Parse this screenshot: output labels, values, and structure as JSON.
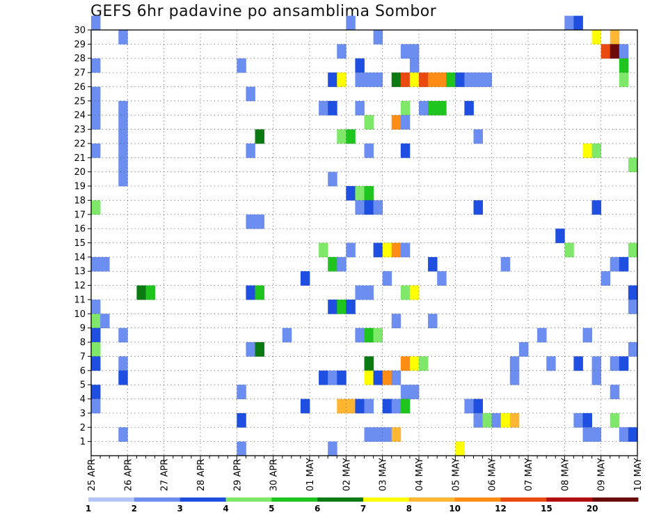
{
  "title": "GEFS 6hr padavine po ansamblima Sombor",
  "chart_data": {
    "type": "heatmap",
    "title": "GEFS 6hr padavine po ansamblima Sombor",
    "x_tick_labels": [
      "25 APR",
      "26 APR",
      "27 APR",
      "28 APR",
      "29 APR",
      "30 APR",
      "01 MAY",
      "02 MAY",
      "03 MAY",
      "04 MAY",
      "05 MAY",
      "06 MAY",
      "07 MAY",
      "08 MAY",
      "09 MAY",
      "10 MAY"
    ],
    "y_tick_labels": [
      "1",
      "2",
      "3",
      "4",
      "5",
      "6",
      "7",
      "8",
      "9",
      "10",
      "11",
      "12",
      "13",
      "14",
      "15",
      "16",
      "17",
      "18",
      "19",
      "20",
      "21",
      "22",
      "23",
      "24",
      "25",
      "26",
      "27",
      "28",
      "29",
      "30"
    ],
    "x_range": [
      0,
      60
    ],
    "y_range": [
      0,
      30
    ],
    "grid": true,
    "colorbar": {
      "tick_labels": [
        "1",
        "2",
        "3",
        "4",
        "5",
        "6",
        "7",
        "8",
        "10",
        "12",
        "15",
        "20"
      ],
      "colors": [
        "#b3c6f7",
        "#6b8ef0",
        "#1f4fe0",
        "#7fe86a",
        "#1fc41f",
        "#0b7a12",
        "#ffff00",
        "#ffb733",
        "#ff8c14",
        "#e84a0f",
        "#b40f0f",
        "#6b0a0a"
      ]
    },
    "cells": [
      [
        0,
        30,
        1
      ],
      [
        28,
        30,
        1
      ],
      [
        52,
        30,
        1
      ],
      [
        53,
        30,
        2
      ],
      [
        3,
        29,
        1
      ],
      [
        31,
        29,
        1
      ],
      [
        55,
        29,
        6
      ],
      [
        57,
        29,
        7
      ],
      [
        27,
        28,
        1
      ],
      [
        34,
        28,
        1
      ],
      [
        35,
        28,
        1
      ],
      [
        56,
        28,
        9
      ],
      [
        57,
        28,
        11
      ],
      [
        58,
        28,
        1
      ],
      [
        0,
        27,
        1
      ],
      [
        16,
        27,
        1
      ],
      [
        29,
        27,
        2
      ],
      [
        35,
        27,
        1
      ],
      [
        58,
        27,
        4
      ],
      [
        26,
        26,
        2
      ],
      [
        27,
        26,
        6
      ],
      [
        29,
        26,
        1
      ],
      [
        30,
        26,
        1
      ],
      [
        31,
        26,
        1
      ],
      [
        33,
        26,
        5
      ],
      [
        34,
        26,
        9
      ],
      [
        35,
        26,
        6
      ],
      [
        36,
        26,
        9
      ],
      [
        37,
        26,
        8
      ],
      [
        38,
        26,
        8
      ],
      [
        39,
        26,
        4
      ],
      [
        40,
        26,
        2
      ],
      [
        41,
        26,
        1
      ],
      [
        42,
        26,
        1
      ],
      [
        43,
        26,
        1
      ],
      [
        58,
        26,
        3
      ],
      [
        0,
        25,
        1
      ],
      [
        17,
        25,
        1
      ],
      [
        0,
        24,
        1
      ],
      [
        3,
        24,
        1
      ],
      [
        25,
        24,
        1
      ],
      [
        26,
        24,
        2
      ],
      [
        29,
        24,
        1
      ],
      [
        34,
        24,
        3
      ],
      [
        36,
        24,
        1
      ],
      [
        37,
        24,
        4
      ],
      [
        38,
        24,
        4
      ],
      [
        41,
        24,
        2
      ],
      [
        0,
        23,
        1
      ],
      [
        3,
        23,
        1
      ],
      [
        30,
        23,
        3
      ],
      [
        33,
        23,
        8
      ],
      [
        34,
        23,
        1
      ],
      [
        3,
        22,
        1
      ],
      [
        18,
        22,
        5
      ],
      [
        27,
        22,
        3
      ],
      [
        28,
        22,
        4
      ],
      [
        42,
        22,
        1
      ],
      [
        0,
        21,
        1
      ],
      [
        3,
        21,
        1
      ],
      [
        17,
        21,
        1
      ],
      [
        30,
        21,
        1
      ],
      [
        34,
        21,
        2
      ],
      [
        54,
        21,
        6
      ],
      [
        55,
        21,
        3
      ],
      [
        3,
        20,
        1
      ],
      [
        59,
        20,
        3
      ],
      [
        3,
        19,
        1
      ],
      [
        26,
        19,
        1
      ],
      [
        28,
        18,
        2
      ],
      [
        29,
        18,
        3
      ],
      [
        30,
        18,
        4
      ],
      [
        0,
        17,
        3
      ],
      [
        29,
        17,
        1
      ],
      [
        30,
        17,
        2
      ],
      [
        31,
        17,
        1
      ],
      [
        42,
        17,
        2
      ],
      [
        55,
        17,
        2
      ],
      [
        17,
        16,
        1
      ],
      [
        18,
        16,
        1
      ],
      [
        51,
        15,
        2
      ],
      [
        25,
        14,
        3
      ],
      [
        28,
        14,
        1
      ],
      [
        31,
        14,
        2
      ],
      [
        32,
        14,
        6
      ],
      [
        33,
        14,
        8
      ],
      [
        34,
        14,
        1
      ],
      [
        52,
        14,
        3
      ],
      [
        59,
        14,
        3
      ],
      [
        0,
        13,
        1
      ],
      [
        1,
        13,
        1
      ],
      [
        26,
        13,
        4
      ],
      [
        27,
        13,
        1
      ],
      [
        37,
        13,
        2
      ],
      [
        45,
        13,
        1
      ],
      [
        57,
        13,
        1
      ],
      [
        58,
        13,
        2
      ],
      [
        23,
        12,
        2
      ],
      [
        32,
        12,
        1
      ],
      [
        38,
        12,
        1
      ],
      [
        56,
        12,
        1
      ],
      [
        5,
        11,
        5
      ],
      [
        6,
        11,
        4
      ],
      [
        17,
        11,
        2
      ],
      [
        18,
        11,
        4
      ],
      [
        29,
        11,
        1
      ],
      [
        30,
        11,
        1
      ],
      [
        34,
        11,
        3
      ],
      [
        35,
        11,
        6
      ],
      [
        59,
        11,
        2
      ],
      [
        0,
        10,
        1
      ],
      [
        26,
        10,
        2
      ],
      [
        27,
        10,
        4
      ],
      [
        28,
        10,
        2
      ],
      [
        59,
        10,
        1
      ],
      [
        0,
        9,
        3
      ],
      [
        1,
        9,
        1
      ],
      [
        33,
        9,
        1
      ],
      [
        37,
        9,
        1
      ],
      [
        0,
        8,
        2
      ],
      [
        3,
        8,
        1
      ],
      [
        21,
        8,
        1
      ],
      [
        29,
        8,
        1
      ],
      [
        30,
        8,
        4
      ],
      [
        31,
        8,
        3
      ],
      [
        49,
        8,
        1
      ],
      [
        54,
        8,
        1
      ],
      [
        0,
        7,
        3
      ],
      [
        17,
        7,
        1
      ],
      [
        18,
        7,
        5
      ],
      [
        47,
        7,
        1
      ],
      [
        59,
        7,
        1
      ],
      [
        0,
        6,
        2
      ],
      [
        3,
        6,
        1
      ],
      [
        30,
        6,
        5
      ],
      [
        34,
        6,
        8
      ],
      [
        35,
        6,
        6
      ],
      [
        36,
        6,
        3
      ],
      [
        46,
        6,
        1
      ],
      [
        50,
        6,
        1
      ],
      [
        53,
        6,
        2
      ],
      [
        55,
        6,
        1
      ],
      [
        57,
        6,
        1
      ],
      [
        58,
        6,
        2
      ],
      [
        3,
        5,
        2
      ],
      [
        25,
        5,
        2
      ],
      [
        26,
        5,
        1
      ],
      [
        27,
        5,
        2
      ],
      [
        30,
        5,
        6
      ],
      [
        31,
        5,
        2
      ],
      [
        32,
        5,
        8
      ],
      [
        33,
        5,
        1
      ],
      [
        46,
        5,
        1
      ],
      [
        55,
        5,
        1
      ],
      [
        0,
        4,
        2
      ],
      [
        16,
        4,
        1
      ],
      [
        34,
        4,
        1
      ],
      [
        35,
        4,
        1
      ],
      [
        57,
        4,
        1
      ],
      [
        0,
        3,
        1
      ],
      [
        23,
        3,
        2
      ],
      [
        27,
        3,
        7
      ],
      [
        28,
        3,
        7
      ],
      [
        29,
        3,
        2
      ],
      [
        30,
        3,
        1
      ],
      [
        32,
        3,
        2
      ],
      [
        33,
        3,
        1
      ],
      [
        34,
        3,
        4
      ],
      [
        41,
        3,
        1
      ],
      [
        42,
        3,
        2
      ],
      [
        16,
        2,
        2
      ],
      [
        42,
        2,
        1
      ],
      [
        43,
        2,
        3
      ],
      [
        44,
        2,
        1
      ],
      [
        45,
        2,
        6
      ],
      [
        46,
        2,
        7
      ],
      [
        53,
        2,
        1
      ],
      [
        54,
        2,
        2
      ],
      [
        57,
        2,
        3
      ],
      [
        3,
        1,
        1
      ],
      [
        30,
        1,
        1
      ],
      [
        31,
        1,
        1
      ],
      [
        32,
        1,
        1
      ],
      [
        33,
        1,
        7
      ],
      [
        54,
        1,
        1
      ],
      [
        55,
        1,
        1
      ],
      [
        58,
        1,
        1
      ],
      [
        59,
        1,
        2
      ],
      [
        16,
        0,
        1
      ],
      [
        26,
        0,
        1
      ],
      [
        40,
        0,
        6
      ]
    ]
  }
}
